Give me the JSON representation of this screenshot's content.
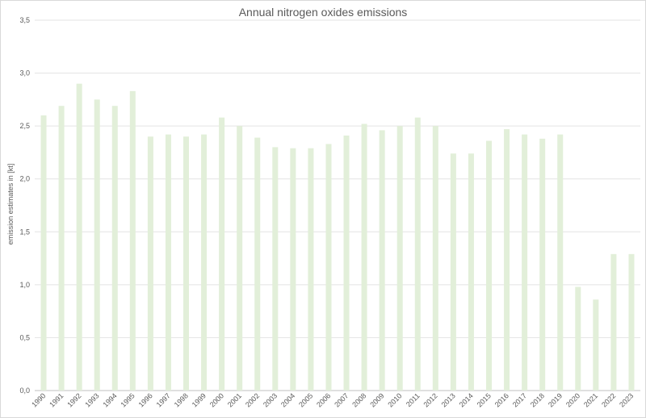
{
  "chart_data": {
    "type": "bar",
    "title": "Annual nitrogen oxides emissions",
    "xlabel": "",
    "ylabel": "emission estimates in [kt]",
    "ylim": [
      0,
      3.5
    ],
    "y_ticks": [
      "0,0",
      "0,5",
      "1,0",
      "1,5",
      "2,0",
      "2,5",
      "3,0",
      "3,5"
    ],
    "y_tick_values": [
      0,
      0.5,
      1.0,
      1.5,
      2.0,
      2.5,
      3.0,
      3.5
    ],
    "grid": true,
    "legend": "none",
    "bar_color": "#e2efd9",
    "categories": [
      "1990",
      "1991",
      "1992",
      "1993",
      "1994",
      "1995",
      "1996",
      "1997",
      "1998",
      "1999",
      "2000",
      "2001",
      "2002",
      "2003",
      "2004",
      "2005",
      "2006",
      "2007",
      "2008",
      "2009",
      "2010",
      "2011",
      "2012",
      "2013",
      "2014",
      "2015",
      "2016",
      "2017",
      "2018",
      "2019",
      "2020",
      "2021",
      "2022",
      "2023"
    ],
    "values": [
      2.6,
      2.69,
      2.9,
      2.75,
      2.69,
      2.83,
      2.4,
      2.42,
      2.4,
      2.42,
      2.58,
      2.5,
      2.39,
      2.3,
      2.29,
      2.29,
      2.33,
      2.41,
      2.52,
      2.46,
      2.5,
      2.58,
      2.5,
      2.24,
      2.24,
      2.36,
      2.47,
      2.42,
      2.38,
      2.42,
      0.98,
      0.86,
      1.29,
      1.29
    ]
  }
}
